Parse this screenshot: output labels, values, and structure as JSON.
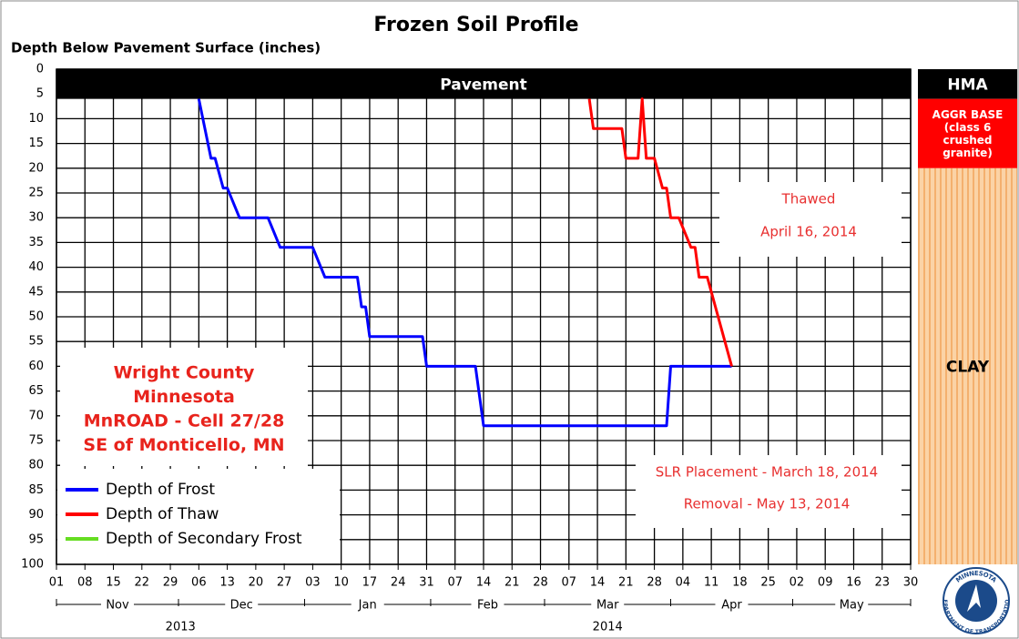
{
  "chart_data": {
    "type": "line",
    "title": "Frozen Soil Profile",
    "y_label": "Depth Below Pavement Surface (inches)",
    "ylim": [
      0,
      100
    ],
    "y_inverted": true,
    "yticks": [
      0,
      5,
      10,
      15,
      20,
      25,
      30,
      35,
      40,
      45,
      50,
      55,
      60,
      65,
      70,
      75,
      80,
      85,
      90,
      95,
      100
    ],
    "xlim": [
      "2013-11-01",
      "2014-05-30"
    ],
    "xticks": [
      {
        "value": "2013-11-01",
        "label": "01"
      },
      {
        "value": "2013-11-08",
        "label": "08"
      },
      {
        "value": "2013-11-15",
        "label": "15"
      },
      {
        "value": "2013-11-22",
        "label": "22"
      },
      {
        "value": "2013-11-29",
        "label": "29"
      },
      {
        "value": "2013-12-06",
        "label": "06"
      },
      {
        "value": "2013-12-13",
        "label": "13"
      },
      {
        "value": "2013-12-20",
        "label": "20"
      },
      {
        "value": "2013-12-27",
        "label": "27"
      },
      {
        "value": "2014-01-03",
        "label": "03"
      },
      {
        "value": "2014-01-10",
        "label": "10"
      },
      {
        "value": "2014-01-17",
        "label": "17"
      },
      {
        "value": "2014-01-24",
        "label": "24"
      },
      {
        "value": "2014-01-31",
        "label": "31"
      },
      {
        "value": "2014-02-07",
        "label": "07"
      },
      {
        "value": "2014-02-14",
        "label": "14"
      },
      {
        "value": "2014-02-21",
        "label": "21"
      },
      {
        "value": "2014-02-28",
        "label": "28"
      },
      {
        "value": "2014-03-07",
        "label": "07"
      },
      {
        "value": "2014-03-14",
        "label": "14"
      },
      {
        "value": "2014-03-21",
        "label": "21"
      },
      {
        "value": "2014-03-28",
        "label": "28"
      },
      {
        "value": "2014-04-04",
        "label": "04"
      },
      {
        "value": "2014-04-11",
        "label": "11"
      },
      {
        "value": "2014-04-18",
        "label": "18"
      },
      {
        "value": "2014-04-25",
        "label": "25"
      },
      {
        "value": "2014-05-02",
        "label": "02"
      },
      {
        "value": "2014-05-09",
        "label": "09"
      },
      {
        "value": "2014-05-16",
        "label": "16"
      },
      {
        "value": "2014-05-23",
        "label": "23"
      },
      {
        "value": "2014-05-30",
        "label": "30"
      }
    ],
    "months": [
      {
        "value": "2013-11-01",
        "label": "Nov"
      },
      {
        "value": "2013-12-01",
        "label": "Dec"
      },
      {
        "value": "2014-01-01",
        "label": "Jan"
      },
      {
        "value": "2014-02-01",
        "label": "Feb"
      },
      {
        "value": "2014-03-01",
        "label": "Mar"
      },
      {
        "value": "2014-04-01",
        "label": "Apr"
      },
      {
        "value": "2014-05-01",
        "label": "May"
      }
    ],
    "years": [
      "2013",
      "2014"
    ],
    "grid": true,
    "pavement": {
      "label": "Pavement",
      "top": 0,
      "bottom": 6,
      "color": "#000000"
    },
    "layers": [
      {
        "lines": [
          "HMA"
        ],
        "top": 0,
        "bottom": 6,
        "color": "#000000"
      },
      {
        "lines": [
          "AGGR BASE",
          "(class 6",
          "crushed",
          "granite)"
        ],
        "top": 6,
        "bottom": 20,
        "color": "#ff0000"
      },
      {
        "lines": [
          "CLAY"
        ],
        "top": 20,
        "bottom": 100,
        "color": "#fbd3a6"
      }
    ],
    "series": [
      {
        "name": "Depth of Frost",
        "color": "#0000ff",
        "x": [
          "2013-12-06",
          "2013-12-09",
          "2013-12-10",
          "2013-12-12",
          "2013-12-13",
          "2013-12-16",
          "2013-12-23",
          "2013-12-26",
          "2014-01-03",
          "2014-01-06",
          "2014-01-14",
          "2014-01-15",
          "2014-01-16",
          "2014-01-17",
          "2014-01-30",
          "2014-01-31",
          "2014-02-12",
          "2014-02-14",
          "2014-03-31",
          "2014-04-01",
          "2014-04-16"
        ],
        "values": [
          6,
          18,
          18,
          24,
          24,
          30,
          30,
          36,
          36,
          42,
          42,
          48,
          48,
          54,
          54,
          60,
          60,
          72,
          72,
          60,
          60
        ]
      },
      {
        "name": "Depth of Thaw",
        "color": "#ff0000",
        "x": [
          "2014-03-12",
          "2014-03-13",
          "2014-03-20",
          "2014-03-21",
          "2014-03-24",
          "2014-03-25",
          "2014-03-26",
          "2014-03-28",
          "2014-03-30",
          "2014-03-31",
          "2014-04-01",
          "2014-04-03",
          "2014-04-06",
          "2014-04-07",
          "2014-04-08",
          "2014-04-10",
          "2014-04-16"
        ],
        "values": [
          6,
          12,
          12,
          18,
          18,
          6,
          18,
          18,
          24,
          24,
          30,
          30,
          36,
          36,
          42,
          42,
          60
        ]
      },
      {
        "name": "Depth of Secondary Frost",
        "color": "#66dd22",
        "x": [],
        "values": []
      }
    ],
    "annotations": [
      {
        "lines": [
          "Thawed",
          "April 16, 2014"
        ]
      },
      {
        "lines": [
          "SLR Placement - March 18, 2014",
          "Removal - May 13, 2014"
        ]
      },
      {
        "lines": [
          "Wright County",
          "Minnesota",
          "MnROAD - Cell 27/28",
          "SE of Monticello, MN"
        ]
      }
    ],
    "logo": {
      "top": "MINNESOTA",
      "bottom": "DEPARTMENT OF TRANSPORTATION"
    }
  }
}
